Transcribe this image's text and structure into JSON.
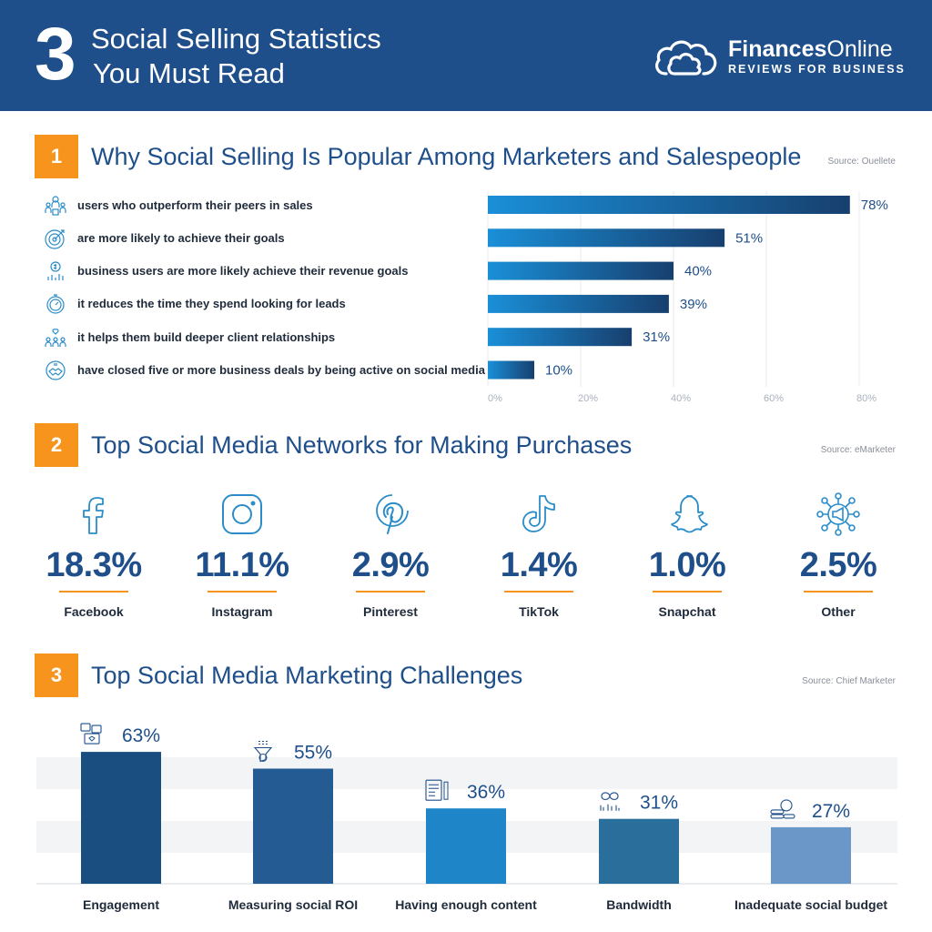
{
  "header": {
    "number": "3",
    "title_line1": "Social Selling Statistics",
    "title_line2": "You Must Read",
    "brand_name_bold": "Finances",
    "brand_name_rest": "Online",
    "brand_tagline": "REVIEWS FOR BUSINESS"
  },
  "section1": {
    "number": "1",
    "title": "Why Social Selling Is Popular Among Marketers and Salespeople",
    "source": "Source: Ouellete",
    "items": [
      {
        "label": "users who outperform their peers in sales",
        "icon": "people-award-icon"
      },
      {
        "label": "are more likely to achieve their goals",
        "icon": "target-icon"
      },
      {
        "label": "business users are more likely achieve their revenue goals",
        "icon": "revenue-growth-icon"
      },
      {
        "label": "it reduces the time they spend looking for leads",
        "icon": "stopwatch-icon"
      },
      {
        "label": "it helps them build deeper client relationships",
        "icon": "relationship-network-icon"
      },
      {
        "label": "have closed five or more business deals by being active on social media",
        "icon": "handshake-deal-icon"
      }
    ]
  },
  "section2": {
    "number": "2",
    "title": "Top Social Media Networks for Making Purchases",
    "source": "Source: eMarketer",
    "networks": [
      {
        "name": "Facebook",
        "value": "18.3%",
        "icon": "facebook-icon"
      },
      {
        "name": "Instagram",
        "value": "11.1%",
        "icon": "instagram-icon"
      },
      {
        "name": "Pinterest",
        "value": "2.9%",
        "icon": "pinterest-icon"
      },
      {
        "name": "TikTok",
        "value": "1.4%",
        "icon": "tiktok-icon"
      },
      {
        "name": "Snapchat",
        "value": "1.0%",
        "icon": "snapchat-icon"
      },
      {
        "name": "Other",
        "value": "2.5%",
        "icon": "megaphone-network-icon"
      }
    ]
  },
  "section3": {
    "number": "3",
    "title": "Top Social Media Marketing Challenges",
    "source": "Source: Chief Marketer"
  },
  "colors": {
    "header_bg": "#1e4f8a",
    "accent": "#f7941d",
    "title_blue": "#1e4f8a",
    "bar_start": "#1a8fd8",
    "bar_end": "#173f6e"
  },
  "chart_data": [
    {
      "type": "bar",
      "orientation": "horizontal",
      "categories": [
        "users who outperform their peers in sales",
        "are more likely to achieve their goals",
        "business users are more likely achieve their revenue goals",
        "it reduces the time they spend looking for leads",
        "it helps them build deeper client relationships",
        "have closed five or more business deals by being active on social media"
      ],
      "values": [
        78,
        51,
        40,
        39,
        31,
        10
      ],
      "value_labels": [
        "78%",
        "51%",
        "40%",
        "39%",
        "31%",
        "10%"
      ],
      "xlim": [
        0,
        80
      ],
      "ticks": [
        "0%",
        "20%",
        "40%",
        "60%",
        "80%"
      ],
      "grid": true
    },
    {
      "type": "bar",
      "orientation": "vertical",
      "categories": [
        "Engagement",
        "Measuring social ROI",
        "Having enough content",
        "Bandwidth",
        "Inadequate social budget"
      ],
      "values": [
        63,
        55,
        36,
        31,
        27
      ],
      "value_labels": [
        "63%",
        "55%",
        "36%",
        "31%",
        "27%"
      ],
      "colors": [
        "#1a4e80",
        "#245b92",
        "#1e86c8",
        "#2a6e9c",
        "#6a96c8"
      ],
      "icons": [
        "engagement-icon",
        "roi-funnel-icon",
        "content-icon",
        "bandwidth-icon",
        "budget-coins-icon"
      ],
      "ylim": [
        0,
        70
      ],
      "grid": "banded"
    }
  ]
}
